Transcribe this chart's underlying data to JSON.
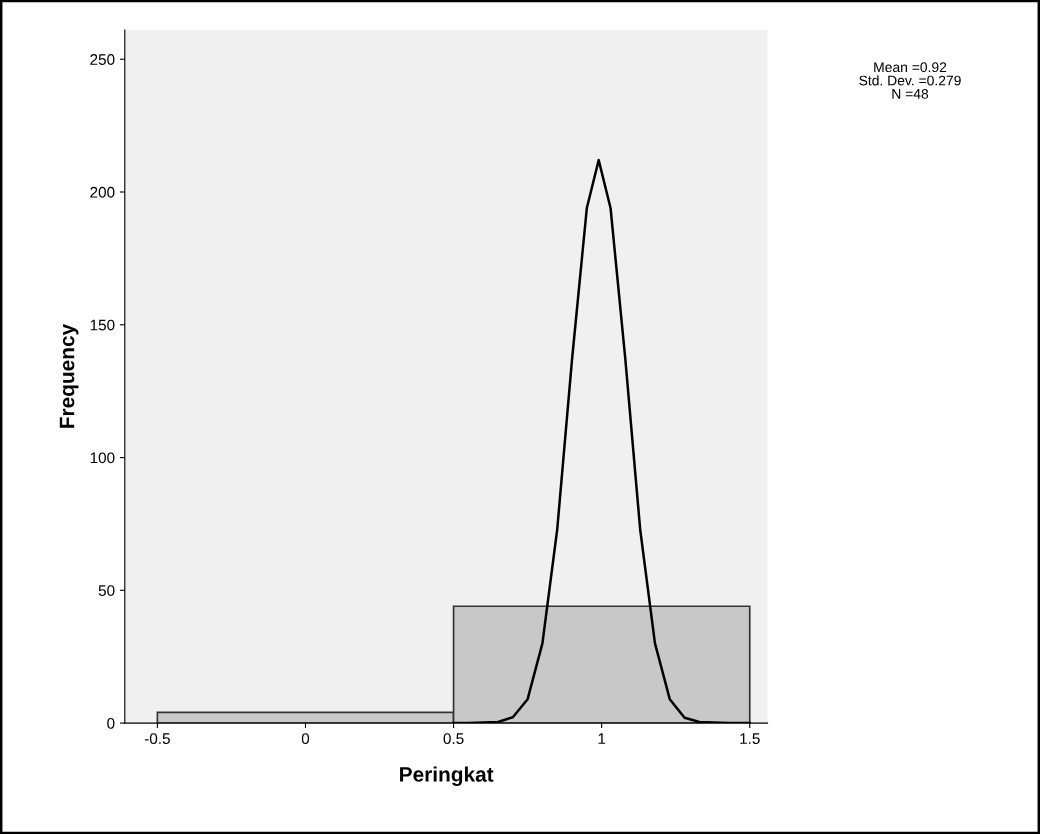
{
  "chart_data": {
    "type": "histogram",
    "xlabel": "Peringkat",
    "ylabel": "Frequency",
    "bins": [
      -0.5,
      0.5,
      1.5
    ],
    "values": [
      4,
      44
    ],
    "color": "#c8c8c8",
    "series": [
      {
        "type": "line",
        "color": "#000000",
        "x": [
          0.5,
          0.55,
          0.65,
          0.7,
          0.75,
          0.8,
          0.85,
          0.9,
          0.95,
          0.99,
          1.03,
          1.08,
          1.13,
          1.18,
          1.23,
          1.28,
          1.33,
          1.43,
          1.5
        ],
        "values": [
          0,
          0,
          0.4,
          2.2,
          9,
          30,
          73,
          137,
          194,
          212,
          194,
          137,
          73,
          30,
          9,
          2,
          0.4,
          0,
          0
        ]
      }
    ],
    "xlim": [
      -0.61,
      1.56
    ],
    "ylim": [
      0,
      261
    ],
    "xticks": [
      -0.5,
      0,
      0.5,
      1,
      1.5
    ],
    "yticks": [
      0,
      50,
      100,
      150,
      200,
      250
    ],
    "grid": false,
    "annotations": [
      "Mean =0.92",
      "Std. Dev. =0.279",
      "N =48"
    ]
  }
}
